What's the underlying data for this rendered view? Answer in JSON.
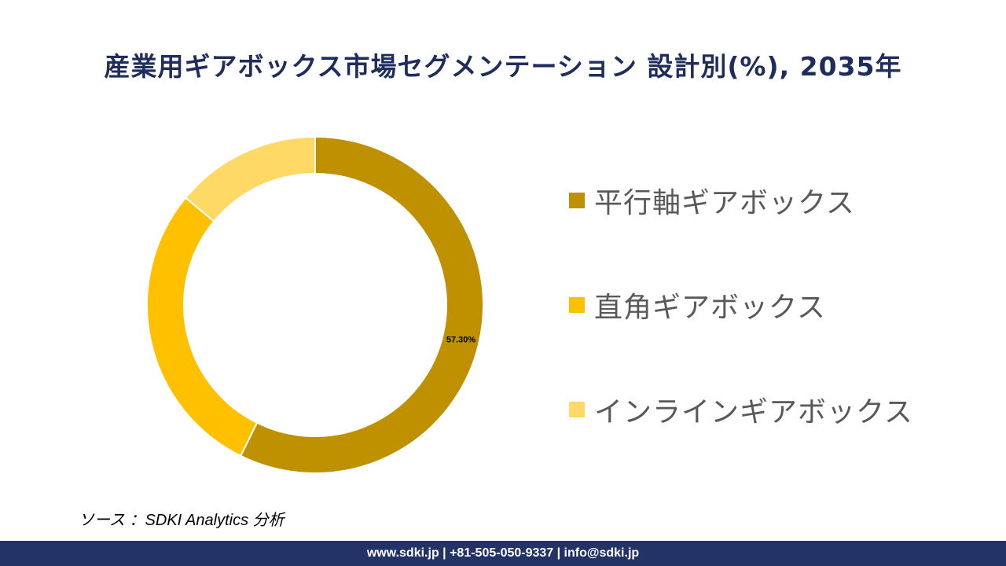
{
  "title": "産業用ギアボックス市場セグメンテーション 設計別(%), 2035年",
  "chart_data": {
    "type": "pie",
    "style": "donut",
    "slices": [
      {
        "label": "平行軸ギアボックス",
        "value": 57.3,
        "data_label": "57.30%",
        "color": "#BF9000"
      },
      {
        "label": "直角ギアボックス",
        "value": 28.7,
        "data_label": "",
        "color": "#FFC000"
      },
      {
        "label": "インラインギアボックス",
        "value": 14.0,
        "data_label": "",
        "color": "#FFD966"
      }
    ],
    "legend_position": "right"
  },
  "source_text": "ソース ：SDKI Analytics 分析",
  "footer_text": "www.sdki.jp | +81-505-050-9337 | info@sdki.jp"
}
